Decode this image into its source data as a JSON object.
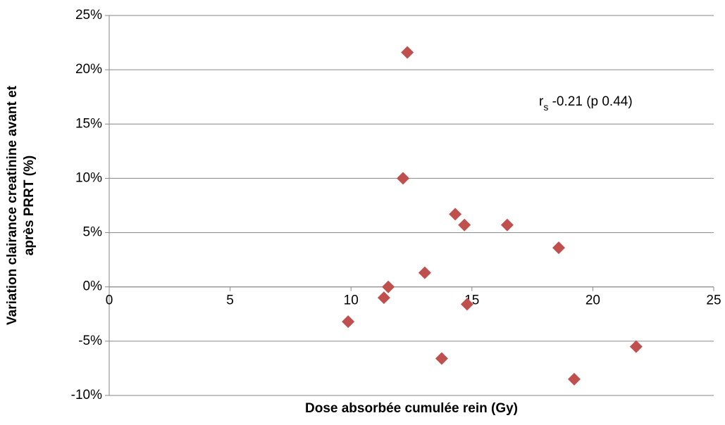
{
  "chart_data": {
    "type": "scatter",
    "x_label": "Dose absorbée cumulée rein (Gy)",
    "y_label": [
      "Variation  clairance creatinine  avant et",
      "après PRRT (%)"
    ],
    "annotation": {
      "base": "r",
      "sub": "s",
      "text": " -0.21 (p 0.44)"
    },
    "series": [
      {
        "color": "#c0504d",
        "x": [
          12.33,
          12.15,
          14.31,
          14.69,
          16.46,
          18.59,
          13.05,
          11.54,
          11.36,
          14.8,
          9.88,
          13.75,
          21.79,
          19.23
        ],
        "values": [
          21.6,
          10.0,
          6.7,
          5.7,
          5.7,
          3.6,
          1.3,
          0.0,
          -1.0,
          -1.6,
          -3.2,
          -6.6,
          -5.5,
          -8.5
        ]
      }
    ],
    "xlim": [
      0,
      25
    ],
    "xticks": [
      0,
      5,
      10,
      15,
      20,
      25
    ],
    "ylim": [
      -10,
      25
    ],
    "yticks": [
      {
        "value": -10,
        "label": "-10%"
      },
      {
        "value": -5,
        "label": "-5%"
      },
      {
        "value": 0,
        "label": "0%"
      },
      {
        "value": 5,
        "label": "5%"
      },
      {
        "value": 10,
        "label": "10%"
      },
      {
        "value": 15,
        "label": "15%"
      },
      {
        "value": 20,
        "label": "20%"
      },
      {
        "value": 25,
        "label": "25%"
      }
    ],
    "grid": true
  }
}
